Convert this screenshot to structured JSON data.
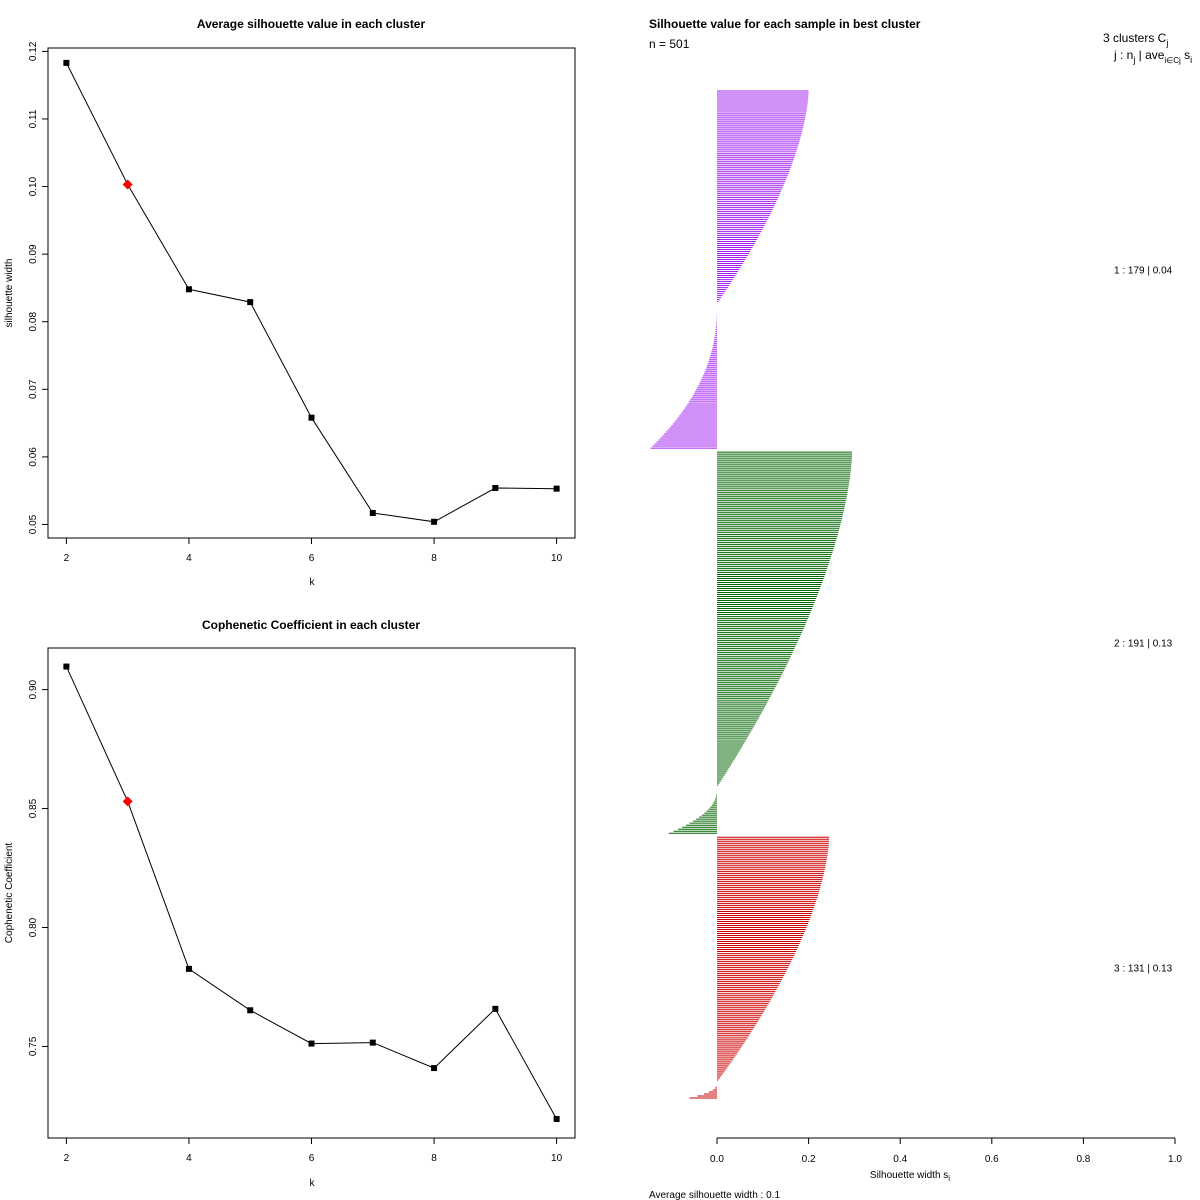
{
  "chart_data": [
    {
      "type": "line",
      "title": "Average silhouette value in each cluster",
      "xlabel": "k",
      "ylabel": "silhouette width",
      "x": [
        2,
        3,
        4,
        5,
        6,
        7,
        8,
        9,
        10
      ],
      "y": [
        0.1183,
        0.1003,
        0.0848,
        0.0829,
        0.0658,
        0.0517,
        0.0504,
        0.0554,
        0.0553
      ],
      "highlight": {
        "x": 3,
        "y": 0.1003,
        "color": "#ff0000"
      },
      "xlim": [
        1.7,
        10.3
      ],
      "ylim": [
        0.048,
        0.1205
      ],
      "xticks": [
        2,
        4,
        6,
        8,
        10
      ],
      "yticks": [
        0.05,
        0.06,
        0.07,
        0.08,
        0.09,
        0.1,
        0.11,
        0.12
      ],
      "ytick_labels": [
        "0.05",
        "0.06",
        "0.07",
        "0.08",
        "0.09",
        "0.10",
        "0.11",
        "0.12"
      ]
    },
    {
      "type": "line",
      "title": "Cophenetic Coefficient in each cluster",
      "xlabel": "k",
      "ylabel": "Cophenetic Coefficient",
      "x": [
        2,
        3,
        4,
        5,
        6,
        7,
        8,
        9,
        10
      ],
      "y": [
        0.9097,
        0.853,
        0.7826,
        0.7652,
        0.7512,
        0.7516,
        0.7409,
        0.7658,
        0.7195
      ],
      "highlight": {
        "x": 3,
        "y": 0.853,
        "color": "#ff0000"
      },
      "xlim": [
        1.7,
        10.3
      ],
      "ylim": [
        0.7115,
        0.9175
      ],
      "xticks": [
        2,
        4,
        6,
        8,
        10
      ],
      "yticks": [
        0.75,
        0.8,
        0.85,
        0.9
      ],
      "ytick_labels": [
        "0.75",
        "0.80",
        "0.85",
        "0.90"
      ]
    },
    {
      "type": "bar",
      "orientation": "horizontal",
      "title": "Silhouette value for each sample in best cluster",
      "n_label": "n = 501",
      "header_line1": "3  clusters  C",
      "header_line1_sub": "j",
      "header_line2": "j :  n",
      "header_line2_sub": "j",
      "header_line2_rest": " | ave",
      "header_line2_sub2": "i∈Cj",
      "header_line2_tail": " s",
      "header_line2_tail_sub": "i",
      "xlabel": "Silhouette width s",
      "xlabel_sub": "i",
      "footer": "Average silhouette width :  0.1",
      "xlim": [
        0,
        1
      ],
      "xticks": [
        0.0,
        0.2,
        0.4,
        0.6,
        0.8,
        1.0
      ],
      "xtick_labels": [
        "0.0",
        "0.2",
        "0.4",
        "0.6",
        "0.8",
        "1.0"
      ],
      "clusters": [
        {
          "label": "1 :   179  |  0.04",
          "n": 179,
          "avg": 0.04,
          "max": 0.2,
          "min": -0.145,
          "neg_frac": 0.4,
          "color": "#a020f0"
        },
        {
          "label": "2 :   191  |  0.13",
          "n": 191,
          "avg": 0.13,
          "max": 0.295,
          "min": -0.105,
          "neg_frac": 0.12,
          "color": "#006400"
        },
        {
          "label": "3 :   131  |  0.13",
          "n": 131,
          "avg": 0.13,
          "max": 0.245,
          "min": -0.06,
          "neg_frac": 0.06,
          "color": "#cd0000"
        }
      ]
    }
  ]
}
